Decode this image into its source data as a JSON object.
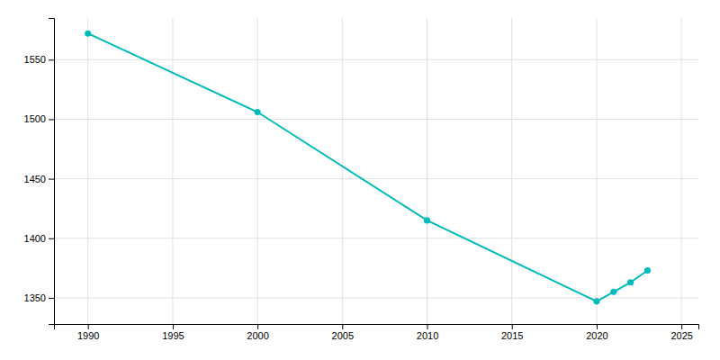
{
  "chart_data": {
    "type": "line",
    "x": [
      1990,
      2000,
      2010,
      2020,
      2021,
      2022,
      2023
    ],
    "values": [
      1572,
      1506,
      1415,
      1347,
      1355,
      1363,
      1373
    ],
    "color": "#00BBBB",
    "marker": "circle",
    "xlim": [
      1988,
      2026
    ],
    "ylim": [
      1328,
      1585
    ],
    "xticks": [
      1990,
      1995,
      2000,
      2005,
      2010,
      2015,
      2020,
      2025
    ],
    "yticks": [
      1350,
      1400,
      1450,
      1500,
      1550
    ],
    "grid": true
  }
}
